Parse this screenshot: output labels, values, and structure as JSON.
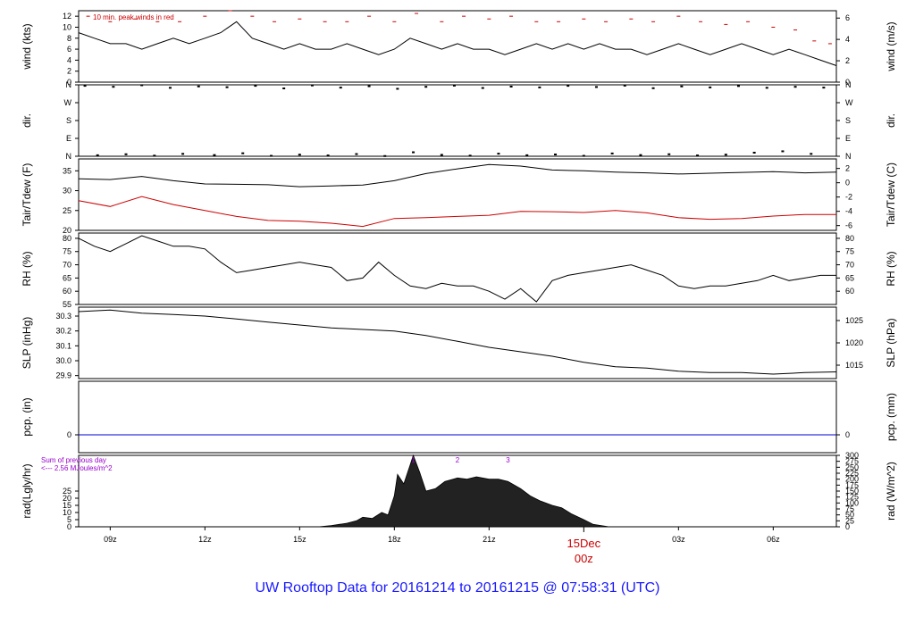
{
  "footer": {
    "title": "UW Rooftop Data for 20161214  to  20161215 @ 07:58:31  (UTC)"
  },
  "colors": {
    "trace": "#000000",
    "accent_red": "#cc0000",
    "pcp_line": "#0000cc",
    "annotation_purple": "#9900cc",
    "title_blue": "#1a1aff"
  },
  "x_axis": {
    "ticks": [
      {
        "x": 9,
        "label": "09z"
      },
      {
        "x": 12,
        "label": "12z"
      },
      {
        "x": 15,
        "label": "15z"
      },
      {
        "x": 18,
        "label": "18z"
      },
      {
        "x": 21,
        "label": "21z"
      },
      {
        "x": 27,
        "label": "03z"
      },
      {
        "x": 30,
        "label": "06z"
      }
    ],
    "xlim": [
      8,
      32
    ],
    "day_marker": {
      "x": 24,
      "date_label": "15Dec",
      "hour_label": "00z"
    }
  },
  "chart_data": [
    {
      "type": "line",
      "panel": "wind",
      "ylabel": "wind (kts)",
      "ylabel_right": "wind (m/s)",
      "ylim": [
        0,
        13
      ],
      "yticks": [
        {
          "v": 0,
          "label": "0"
        },
        {
          "v": 2,
          "label": "2"
        },
        {
          "v": 4,
          "label": "4"
        },
        {
          "v": 6,
          "label": "6"
        },
        {
          "v": 8,
          "label": "8"
        },
        {
          "v": 10,
          "label": "10"
        },
        {
          "v": 12,
          "label": "12"
        }
      ],
      "yticks_right": [
        {
          "v": 0,
          "label": "0"
        },
        {
          "v": 3.89,
          "label": "2"
        },
        {
          "v": 7.78,
          "label": "4"
        },
        {
          "v": 11.66,
          "label": "6"
        }
      ],
      "annotation": "10 min. peak winds in red",
      "series": [
        {
          "x": [
            8,
            8.5,
            9,
            9.5,
            10,
            10.5,
            11,
            11.5,
            12,
            12.5,
            13,
            13.5,
            14,
            14.5,
            15,
            15.5,
            16,
            16.5,
            17,
            17.5,
            18,
            18.5,
            19,
            19.5,
            20,
            20.5,
            21,
            21.5,
            22,
            22.5,
            23,
            23.5,
            24,
            24.5,
            25,
            25.5,
            26,
            26.5,
            27,
            27.5,
            28,
            28.5,
            29,
            29.5,
            30,
            30.5,
            31,
            31.5,
            32
          ],
          "values": [
            9,
            8,
            7,
            7,
            6,
            7,
            8,
            7,
            8,
            9,
            11,
            8,
            7,
            6,
            7,
            6,
            6,
            7,
            6,
            5,
            6,
            8,
            7,
            6,
            7,
            6,
            6,
            5,
            6,
            7,
            6,
            7,
            6,
            7,
            6,
            6,
            5,
            6,
            7,
            6,
            5,
            6,
            7,
            6,
            5,
            6,
            5,
            4,
            3
          ]
        }
      ],
      "peaks": {
        "x": [
          8.3,
          9,
          9.8,
          10.5,
          11.2,
          12,
          12.8,
          13.5,
          14.2,
          15,
          15.8,
          16.5,
          17.2,
          18,
          18.7,
          19.5,
          20.2,
          21,
          21.7,
          22.5,
          23.2,
          24,
          24.7,
          25.5,
          26.2,
          27,
          27.7,
          28.5,
          29.2,
          30,
          30.7,
          31.3,
          31.8
        ],
        "values": [
          12,
          11,
          11.5,
          11,
          11,
          12,
          13,
          12,
          11,
          11.5,
          11,
          11,
          12,
          11,
          12.5,
          11,
          12,
          11.5,
          12,
          11,
          11,
          11.5,
          11,
          11.5,
          11,
          12,
          11,
          10.5,
          11,
          10,
          9.5,
          7.5,
          7
        ]
      }
    },
    {
      "type": "scatter",
      "panel": "dir",
      "ylabel": "dir.",
      "ylabel_right": "dir.",
      "ylim": [
        0,
        360
      ],
      "yticks": [
        {
          "v": 0,
          "label": "N"
        },
        {
          "v": 90,
          "label": "E"
        },
        {
          "v": 180,
          "label": "S"
        },
        {
          "v": 270,
          "label": "W"
        },
        {
          "v": 360,
          "label": "N"
        }
      ],
      "yticks_right": [
        {
          "v": 0,
          "label": "N"
        },
        {
          "v": 90,
          "label": "E"
        },
        {
          "v": 180,
          "label": "S"
        },
        {
          "v": 270,
          "label": "W"
        },
        {
          "v": 360,
          "label": "N"
        }
      ],
      "series": [
        {
          "x": [
            8.2,
            8.6,
            9.1,
            9.5,
            10,
            10.4,
            10.9,
            11.3,
            11.8,
            12.3,
            12.7,
            13.2,
            13.6,
            14.1,
            14.5,
            15,
            15.4,
            15.9,
            16.3,
            16.8,
            17.2,
            17.7,
            18.1,
            18.6,
            19,
            19.5,
            19.9,
            20.4,
            20.8,
            21.3,
            21.7,
            22.2,
            22.6,
            23.1,
            23.5,
            24,
            24.4,
            24.9,
            25.3,
            25.8,
            26.2,
            26.7,
            27.1,
            27.6,
            28,
            28.5,
            28.9,
            29.4,
            29.8,
            30.3,
            30.7,
            31.2,
            31.6
          ],
          "values": [
            355,
            5,
            350,
            10,
            358,
            3,
            345,
            12,
            352,
            6,
            348,
            15,
            355,
            2,
            342,
            8,
            357,
            4,
            346,
            11,
            353,
            1,
            340,
            20,
            350,
            7,
            356,
            3,
            344,
            13,
            351,
            5,
            347,
            9,
            355,
            2,
            349,
            14,
            356,
            6,
            343,
            10,
            352,
            4,
            347,
            8,
            354,
            18,
            345,
            25,
            350,
            12,
            346
          ]
        }
      ]
    },
    {
      "type": "line",
      "panel": "temp",
      "ylabel": "Tair/Tdew (F)",
      "ylabel_right": "Tair/Tdew (C)",
      "ylim": [
        20,
        38
      ],
      "yticks": [
        {
          "v": 20,
          "label": "20"
        },
        {
          "v": 25,
          "label": "25"
        },
        {
          "v": 30,
          "label": "30"
        },
        {
          "v": 35,
          "label": "35"
        }
      ],
      "yticks_right": [
        {
          "v": 21.2,
          "label": "-6"
        },
        {
          "v": 24.8,
          "label": "-4"
        },
        {
          "v": 28.4,
          "label": "-2"
        },
        {
          "v": 32,
          "label": "0"
        },
        {
          "v": 35.6,
          "label": "2"
        }
      ],
      "series": [
        {
          "x": [
            8,
            9,
            10,
            11,
            12,
            13,
            14,
            15,
            16,
            17,
            18,
            19,
            20,
            21,
            22,
            23,
            24,
            25,
            26,
            27,
            28,
            29,
            30,
            31,
            32
          ],
          "values": [
            33,
            32.8,
            33.6,
            32.5,
            31.7,
            31.6,
            31.5,
            31,
            31.2,
            31.4,
            32.5,
            34.3,
            35.5,
            36.6,
            36.2,
            35.2,
            35,
            34.7,
            34.5,
            34.2,
            34.4,
            34.6,
            34.8,
            34.5,
            34.7
          ]
        },
        {
          "x": [
            8,
            9,
            10,
            11,
            12,
            13,
            14,
            15,
            16,
            17,
            18,
            19,
            20,
            21,
            22,
            23,
            24,
            25,
            26,
            27,
            28,
            29,
            30,
            31,
            32
          ],
          "values": [
            27.5,
            26,
            28.5,
            26.5,
            25,
            23.5,
            22.5,
            22.3,
            21.8,
            21,
            23,
            23.2,
            23.5,
            23.8,
            24.8,
            24.7,
            24.5,
            25,
            24.4,
            23.2,
            22.8,
            23,
            23.6,
            24,
            24
          ]
        }
      ]
    },
    {
      "type": "line",
      "panel": "rh",
      "ylabel": "RH (%)",
      "ylabel_right": "RH (%)",
      "ylim": [
        55,
        82
      ],
      "yticks": [
        {
          "v": 55,
          "label": "55"
        },
        {
          "v": 60,
          "label": "60"
        },
        {
          "v": 65,
          "label": "65"
        },
        {
          "v": 70,
          "label": "70"
        },
        {
          "v": 75,
          "label": "75"
        },
        {
          "v": 80,
          "label": "80"
        }
      ],
      "yticks_right": [
        {
          "v": 60,
          "label": "60"
        },
        {
          "v": 65,
          "label": "65"
        },
        {
          "v": 70,
          "label": "70"
        },
        {
          "v": 75,
          "label": "75"
        },
        {
          "v": 80,
          "label": "80"
        }
      ],
      "series": [
        {
          "x": [
            8,
            8.5,
            9,
            9.5,
            10,
            10.5,
            11,
            11.5,
            12,
            12.5,
            13,
            13.5,
            14,
            14.5,
            15,
            15.5,
            16,
            16.5,
            17,
            17.5,
            18,
            18.5,
            19,
            19.5,
            20,
            20.5,
            21,
            21.5,
            22,
            22.5,
            23,
            23.5,
            24,
            24.5,
            25,
            25.5,
            26,
            26.5,
            27,
            27.5,
            28,
            28.5,
            29,
            29.5,
            30,
            30.5,
            31,
            31.5,
            32
          ],
          "values": [
            80,
            77,
            75,
            78,
            81,
            79,
            77,
            77,
            76,
            71,
            67,
            68,
            69,
            70,
            71,
            70,
            69,
            64,
            65,
            71,
            66,
            62,
            61,
            63,
            62,
            62,
            60,
            57,
            61,
            56,
            64,
            66,
            67,
            68,
            69,
            70,
            68,
            66,
            62,
            61,
            62,
            62,
            63,
            64,
            66,
            64,
            65,
            66,
            66
          ]
        }
      ]
    },
    {
      "type": "line",
      "panel": "slp",
      "ylabel": "SLP (inHg)",
      "ylabel_right": "SLP (hPa)",
      "ylim": [
        29.88,
        30.36
      ],
      "yticks": [
        {
          "v": 29.9,
          "label": "29.9"
        },
        {
          "v": 30.0,
          "label": "30.0"
        },
        {
          "v": 30.1,
          "label": "30.1"
        },
        {
          "v": 30.2,
          "label": "30.2"
        },
        {
          "v": 30.3,
          "label": "30.3"
        }
      ],
      "yticks_right": [
        {
          "v": 29.97,
          "label": "1015"
        },
        {
          "v": 30.12,
          "label": "1020"
        },
        {
          "v": 30.27,
          "label": "1025"
        }
      ],
      "series": [
        {
          "x": [
            8,
            9,
            10,
            11,
            12,
            13,
            14,
            15,
            16,
            17,
            18,
            19,
            20,
            21,
            22,
            23,
            24,
            25,
            26,
            27,
            28,
            29,
            30,
            31,
            32
          ],
          "values": [
            30.33,
            30.34,
            30.32,
            30.31,
            30.3,
            30.28,
            30.26,
            30.24,
            30.22,
            30.21,
            30.2,
            30.17,
            30.13,
            30.09,
            30.06,
            30.03,
            29.99,
            29.96,
            29.95,
            29.93,
            29.92,
            29.92,
            29.91,
            29.92,
            29.925
          ]
        }
      ]
    },
    {
      "type": "line",
      "panel": "pcp",
      "ylabel": "pcp. (in)",
      "ylabel_right": "pcp. (mm)",
      "ylim": [
        -0.5,
        1.5
      ],
      "yticks": [
        {
          "v": 0,
          "label": "0"
        }
      ],
      "yticks_right": [
        {
          "v": 0,
          "label": "0"
        }
      ],
      "series": [
        {
          "x": [
            8,
            32
          ],
          "values": [
            0,
            0
          ]
        }
      ]
    },
    {
      "type": "area",
      "panel": "rad",
      "ylabel": "rad(Lgly/hr)",
      "ylabel_right": "rad (W/m^2)",
      "ylim": [
        0,
        300
      ],
      "yticks": [
        {
          "v": 0,
          "label": "0"
        },
        {
          "v": 30,
          "label": "5"
        },
        {
          "v": 60,
          "label": "10"
        },
        {
          "v": 90,
          "label": "15"
        },
        {
          "v": 120,
          "label": "20"
        },
        {
          "v": 150,
          "label": "25"
        }
      ],
      "yticks_right": [
        {
          "v": 0,
          "label": "0"
        },
        {
          "v": 25,
          "label": "25"
        },
        {
          "v": 50,
          "label": "50"
        },
        {
          "v": 75,
          "label": "75"
        },
        {
          "v": 100,
          "label": "100"
        },
        {
          "v": 125,
          "label": "125"
        },
        {
          "v": 150,
          "label": "150"
        },
        {
          "v": 175,
          "label": "175"
        },
        {
          "v": 200,
          "label": "200"
        },
        {
          "v": 225,
          "label": "225"
        },
        {
          "v": 250,
          "label": "250"
        },
        {
          "v": 275,
          "label": "275"
        },
        {
          "v": 300,
          "label": "300"
        }
      ],
      "annotations": [
        "Sum of previous day",
        "<--- 2.56 MJoules/m^2"
      ],
      "markers": [
        {
          "x": 18.6,
          "label": "1"
        },
        {
          "x": 20.0,
          "label": "2"
        },
        {
          "x": 21.6,
          "label": "3"
        }
      ],
      "series": [
        {
          "x": [
            15.6,
            16,
            16.5,
            16.8,
            17,
            17.3,
            17.6,
            17.8,
            18,
            18.1,
            18.3,
            18.5,
            18.6,
            18.8,
            19,
            19.3,
            19.6,
            20,
            20.3,
            20.6,
            21,
            21.3,
            21.6,
            22,
            22.3,
            22.6,
            23,
            23.3,
            23.6,
            24,
            24.3,
            24.8
          ],
          "values": [
            0,
            5,
            15,
            25,
            40,
            35,
            60,
            50,
            130,
            220,
            180,
            260,
            300,
            230,
            150,
            160,
            190,
            205,
            200,
            210,
            200,
            200,
            190,
            160,
            130,
            110,
            90,
            80,
            55,
            30,
            10,
            0
          ]
        }
      ]
    }
  ]
}
